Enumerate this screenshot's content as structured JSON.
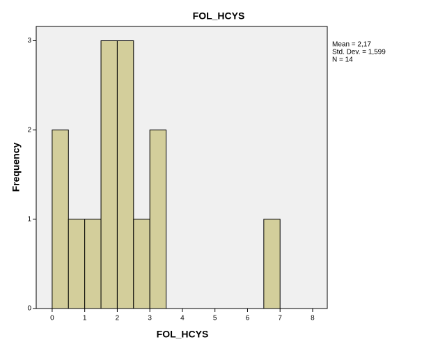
{
  "chart_data": {
    "type": "histogram",
    "title": "FOL_HCYS",
    "x_label": "FOL_HCYS",
    "y_label": "Frequency",
    "bins": [
      0,
      0.5,
      1,
      1.5,
      2,
      2.5,
      3,
      3.5,
      4,
      4.5,
      5,
      5.5,
      6,
      6.5,
      7
    ],
    "values": [
      2,
      1,
      1,
      3,
      3,
      1,
      2,
      0,
      0,
      0,
      0,
      0,
      0,
      1
    ],
    "color": "#d3ce9b",
    "xlim": [
      -0.49,
      8.45
    ],
    "xticks": [
      0,
      1,
      2,
      3,
      4,
      5,
      6,
      7,
      8
    ],
    "ylim": [
      0,
      3.16
    ],
    "yticks": [
      0,
      1,
      2,
      3
    ],
    "annotations": [
      "Mean = 2,17",
      "Std. Dev. = 1,599",
      "N = 14"
    ]
  }
}
